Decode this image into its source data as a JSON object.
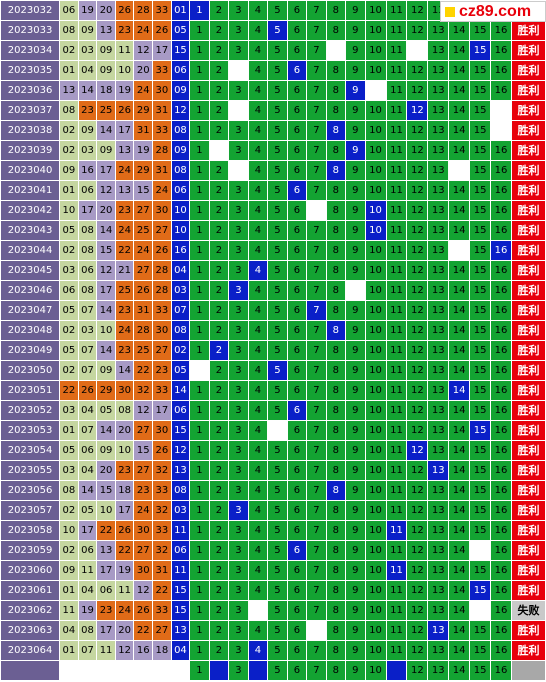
{
  "site_logo": "cz89.com",
  "rows": [
    {
      "issue": "2023032",
      "reds": [
        "06",
        "19",
        "20",
        "26",
        "28",
        "33"
      ],
      "blue": "01",
      "hit": 1,
      "blank": [],
      "result": ""
    },
    {
      "issue": "2023033",
      "reds": [
        "08",
        "09",
        "13",
        "23",
        "24",
        "26"
      ],
      "blue": "05",
      "hit": 5,
      "blank": [],
      "result": "胜利"
    },
    {
      "issue": "2023034",
      "reds": [
        "02",
        "03",
        "09",
        "11",
        "12",
        "17"
      ],
      "blue": "15",
      "hit": 15,
      "blank": [
        8,
        12
      ],
      "result": "胜利"
    },
    {
      "issue": "2023035",
      "reds": [
        "01",
        "04",
        "09",
        "10",
        "20",
        "33"
      ],
      "blue": "06",
      "hit": 6,
      "blank": [
        3
      ],
      "result": "胜利"
    },
    {
      "issue": "2023036",
      "reds": [
        "13",
        "14",
        "18",
        "19",
        "24",
        "30"
      ],
      "blue": "09",
      "hit": 9,
      "blank": [
        10
      ],
      "result": "胜利"
    },
    {
      "issue": "2023037",
      "reds": [
        "08",
        "23",
        "25",
        "26",
        "29",
        "31"
      ],
      "blue": "12",
      "hit": 12,
      "blank": [
        3,
        16
      ],
      "result": "胜利"
    },
    {
      "issue": "2023038",
      "reds": [
        "02",
        "09",
        "14",
        "17",
        "31",
        "33"
      ],
      "blue": "08",
      "hit": 8,
      "blank": [
        16
      ],
      "result": "胜利"
    },
    {
      "issue": "2023039",
      "reds": [
        "02",
        "03",
        "09",
        "13",
        "19",
        "28"
      ],
      "blue": "09",
      "hit": 9,
      "blank": [
        2
      ],
      "result": "胜利"
    },
    {
      "issue": "2023040",
      "reds": [
        "09",
        "16",
        "17",
        "24",
        "29",
        "31"
      ],
      "blue": "08",
      "hit": 8,
      "blank": [
        3,
        14
      ],
      "result": "胜利"
    },
    {
      "issue": "2023041",
      "reds": [
        "01",
        "06",
        "12",
        "13",
        "15",
        "24"
      ],
      "blue": "06",
      "hit": 6,
      "blank": [],
      "result": "胜利"
    },
    {
      "issue": "2023042",
      "reds": [
        "10",
        "17",
        "20",
        "23",
        "27",
        "30"
      ],
      "blue": "10",
      "hit": 10,
      "blank": [
        7
      ],
      "result": "胜利"
    },
    {
      "issue": "2023043",
      "reds": [
        "05",
        "08",
        "14",
        "24",
        "25",
        "27"
      ],
      "blue": "10",
      "hit": 10,
      "blank": [],
      "result": "胜利"
    },
    {
      "issue": "2023044",
      "reds": [
        "02",
        "08",
        "15",
        "22",
        "24",
        "26"
      ],
      "blue": "16",
      "hit": 16,
      "blank": [
        14
      ],
      "result": "胜利"
    },
    {
      "issue": "2023045",
      "reds": [
        "03",
        "06",
        "12",
        "21",
        "27",
        "28"
      ],
      "blue": "04",
      "hit": 4,
      "blank": [],
      "result": "胜利"
    },
    {
      "issue": "2023046",
      "reds": [
        "06",
        "08",
        "17",
        "25",
        "26",
        "28"
      ],
      "blue": "03",
      "hit": 3,
      "blank": [
        9
      ],
      "result": "胜利"
    },
    {
      "issue": "2023047",
      "reds": [
        "05",
        "07",
        "14",
        "23",
        "31",
        "33"
      ],
      "blue": "07",
      "hit": 7,
      "blank": [],
      "result": "胜利"
    },
    {
      "issue": "2023048",
      "reds": [
        "02",
        "03",
        "10",
        "24",
        "28",
        "30"
      ],
      "blue": "08",
      "hit": 8,
      "blank": [],
      "result": "胜利"
    },
    {
      "issue": "2023049",
      "reds": [
        "05",
        "07",
        "14",
        "23",
        "25",
        "27"
      ],
      "blue": "02",
      "hit": 2,
      "blank": [],
      "result": "胜利"
    },
    {
      "issue": "2023050",
      "reds": [
        "02",
        "07",
        "09",
        "14",
        "22",
        "23"
      ],
      "blue": "05",
      "hit": 5,
      "blank": [
        1
      ],
      "result": "胜利"
    },
    {
      "issue": "2023051",
      "reds": [
        "22",
        "26",
        "29",
        "30",
        "32",
        "33"
      ],
      "blue": "14",
      "hit": 14,
      "blank": [],
      "result": "胜利"
    },
    {
      "issue": "2023052",
      "reds": [
        "03",
        "04",
        "05",
        "08",
        "12",
        "17"
      ],
      "blue": "06",
      "hit": 6,
      "blank": [],
      "result": "胜利"
    },
    {
      "issue": "2023053",
      "reds": [
        "01",
        "07",
        "14",
        "20",
        "27",
        "30"
      ],
      "blue": "15",
      "hit": 15,
      "blank": [
        5
      ],
      "result": "胜利"
    },
    {
      "issue": "2023054",
      "reds": [
        "05",
        "06",
        "09",
        "10",
        "15",
        "26"
      ],
      "blue": "12",
      "hit": 12,
      "blank": [],
      "result": "胜利"
    },
    {
      "issue": "2023055",
      "reds": [
        "03",
        "04",
        "20",
        "23",
        "27",
        "32"
      ],
      "blue": "13",
      "hit": 13,
      "blank": [],
      "result": "胜利"
    },
    {
      "issue": "2023056",
      "reds": [
        "08",
        "14",
        "15",
        "18",
        "23",
        "33"
      ],
      "blue": "08",
      "hit": 8,
      "blank": [],
      "result": "胜利"
    },
    {
      "issue": "2023057",
      "reds": [
        "02",
        "05",
        "10",
        "17",
        "24",
        "32"
      ],
      "blue": "03",
      "hit": 3,
      "blank": [],
      "result": "胜利"
    },
    {
      "issue": "2023058",
      "reds": [
        "10",
        "17",
        "22",
        "26",
        "30",
        "33"
      ],
      "blue": "11",
      "hit": 11,
      "blank": [],
      "result": "胜利"
    },
    {
      "issue": "2023059",
      "reds": [
        "02",
        "06",
        "13",
        "22",
        "27",
        "32"
      ],
      "blue": "06",
      "hit": 6,
      "blank": [
        15
      ],
      "result": "胜利"
    },
    {
      "issue": "2023060",
      "reds": [
        "09",
        "11",
        "17",
        "19",
        "30",
        "31"
      ],
      "blue": "11",
      "hit": 11,
      "blank": [],
      "result": "胜利"
    },
    {
      "issue": "2023061",
      "reds": [
        "01",
        "04",
        "06",
        "11",
        "12",
        "22"
      ],
      "blue": "15",
      "hit": 15,
      "blank": [],
      "result": "胜利"
    },
    {
      "issue": "2023062",
      "reds": [
        "11",
        "19",
        "23",
        "24",
        "26",
        "33"
      ],
      "blue": "15",
      "hit": 0,
      "blank": [
        4,
        15
      ],
      "result": "失败"
    },
    {
      "issue": "2023063",
      "reds": [
        "04",
        "08",
        "17",
        "20",
        "22",
        "27"
      ],
      "blue": "13",
      "hit": 13,
      "blank": [
        7
      ],
      "result": "胜利"
    },
    {
      "issue": "2023064",
      "reds": [
        "01",
        "07",
        "11",
        "12",
        "16",
        "18"
      ],
      "blue": "04",
      "hit": 4,
      "blank": [],
      "result": "胜利"
    }
  ],
  "forecast": {
    "hits": [
      2,
      4,
      11
    ],
    "blank": []
  }
}
